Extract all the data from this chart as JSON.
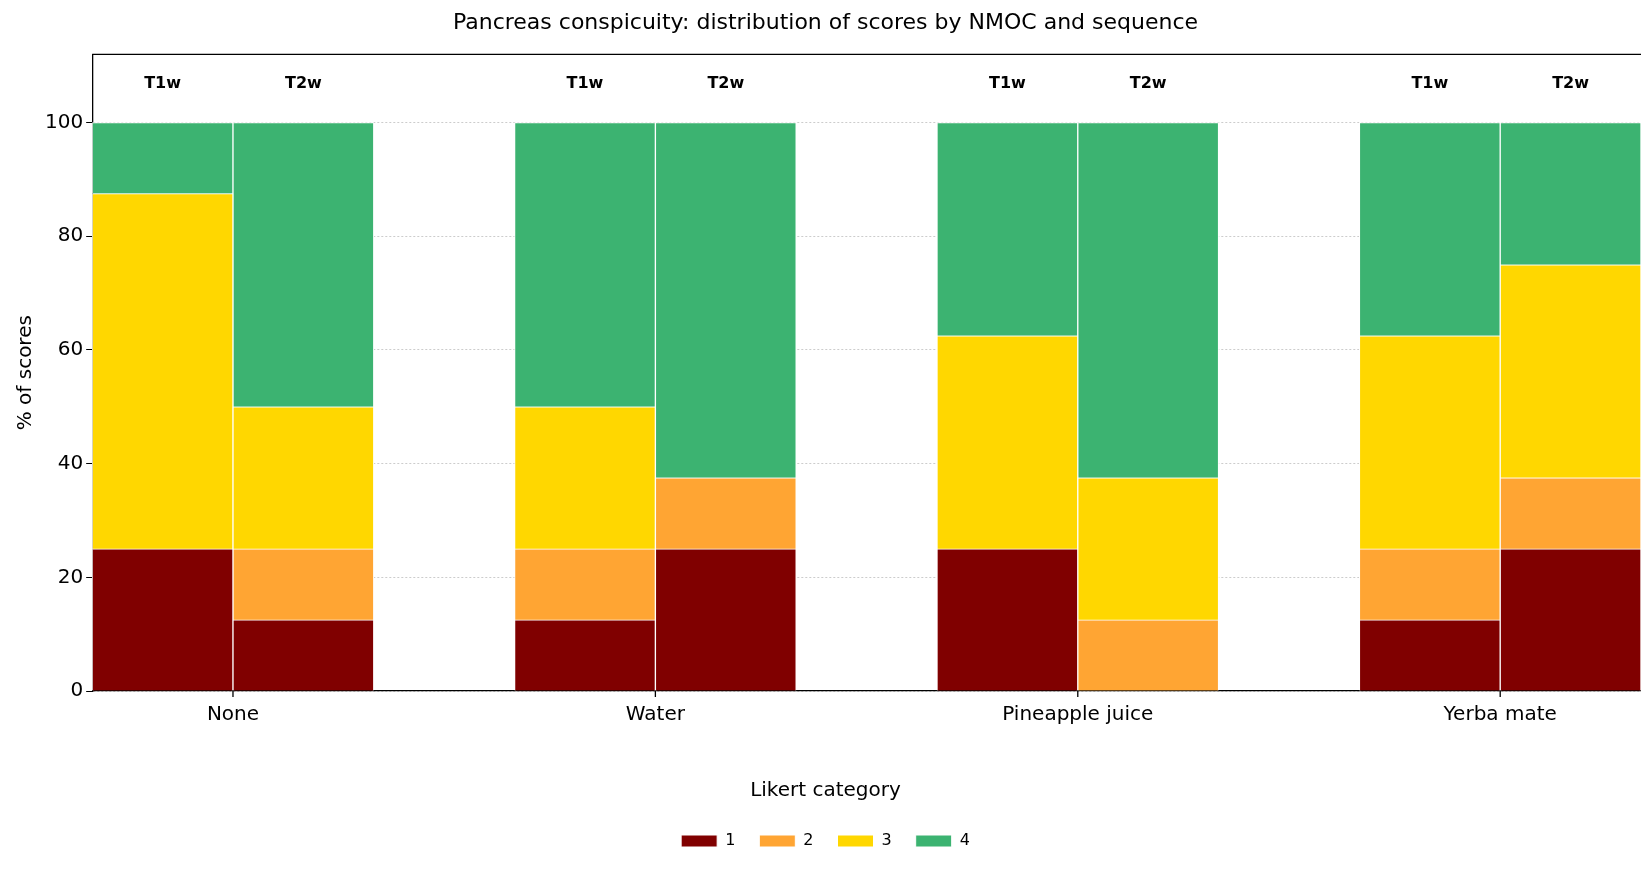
{
  "chart_data": {
    "type": "bar",
    "title": "Pancreas conspicuity: distribution of scores by NMOC and sequence",
    "categories": [
      "T1w",
      "T2w",
      null,
      "T1w",
      "T2w",
      null,
      "T1w",
      "T2w",
      null,
      "T1w",
      "T2w"
    ],
    "annotations": [
      "None",
      "Water",
      "Pineapple juice",
      "Yerba mate"
    ],
    "ylabel": "% of scores",
    "legend_title": "Likert category",
    "stacked": true,
    "series": [
      {
        "name": "1",
        "color": "#800000",
        "values": [
          25,
          12.5,
          null,
          12.5,
          25,
          null,
          25,
          0,
          null,
          12.5,
          25
        ]
      },
      {
        "name": "2",
        "color": "#ffa533",
        "values": [
          0,
          12.5,
          null,
          12.5,
          12.5,
          null,
          0,
          12.5,
          null,
          12.5,
          12.5
        ]
      },
      {
        "name": "3",
        "color": "#ffd700",
        "values": [
          62.5,
          25,
          null,
          25,
          0,
          null,
          37.5,
          25,
          null,
          37.5,
          37.5
        ]
      },
      {
        "name": "4",
        "color": "#3cb371",
        "values": [
          12.5,
          50,
          null,
          50,
          62.5,
          null,
          37.5,
          62.5,
          null,
          37.5,
          25
        ]
      }
    ],
    "ylim": [
      0,
      112
    ],
    "yticks": [
      0,
      20,
      40,
      60,
      80,
      100
    ],
    "grid": "y",
    "legend": "bottom"
  }
}
